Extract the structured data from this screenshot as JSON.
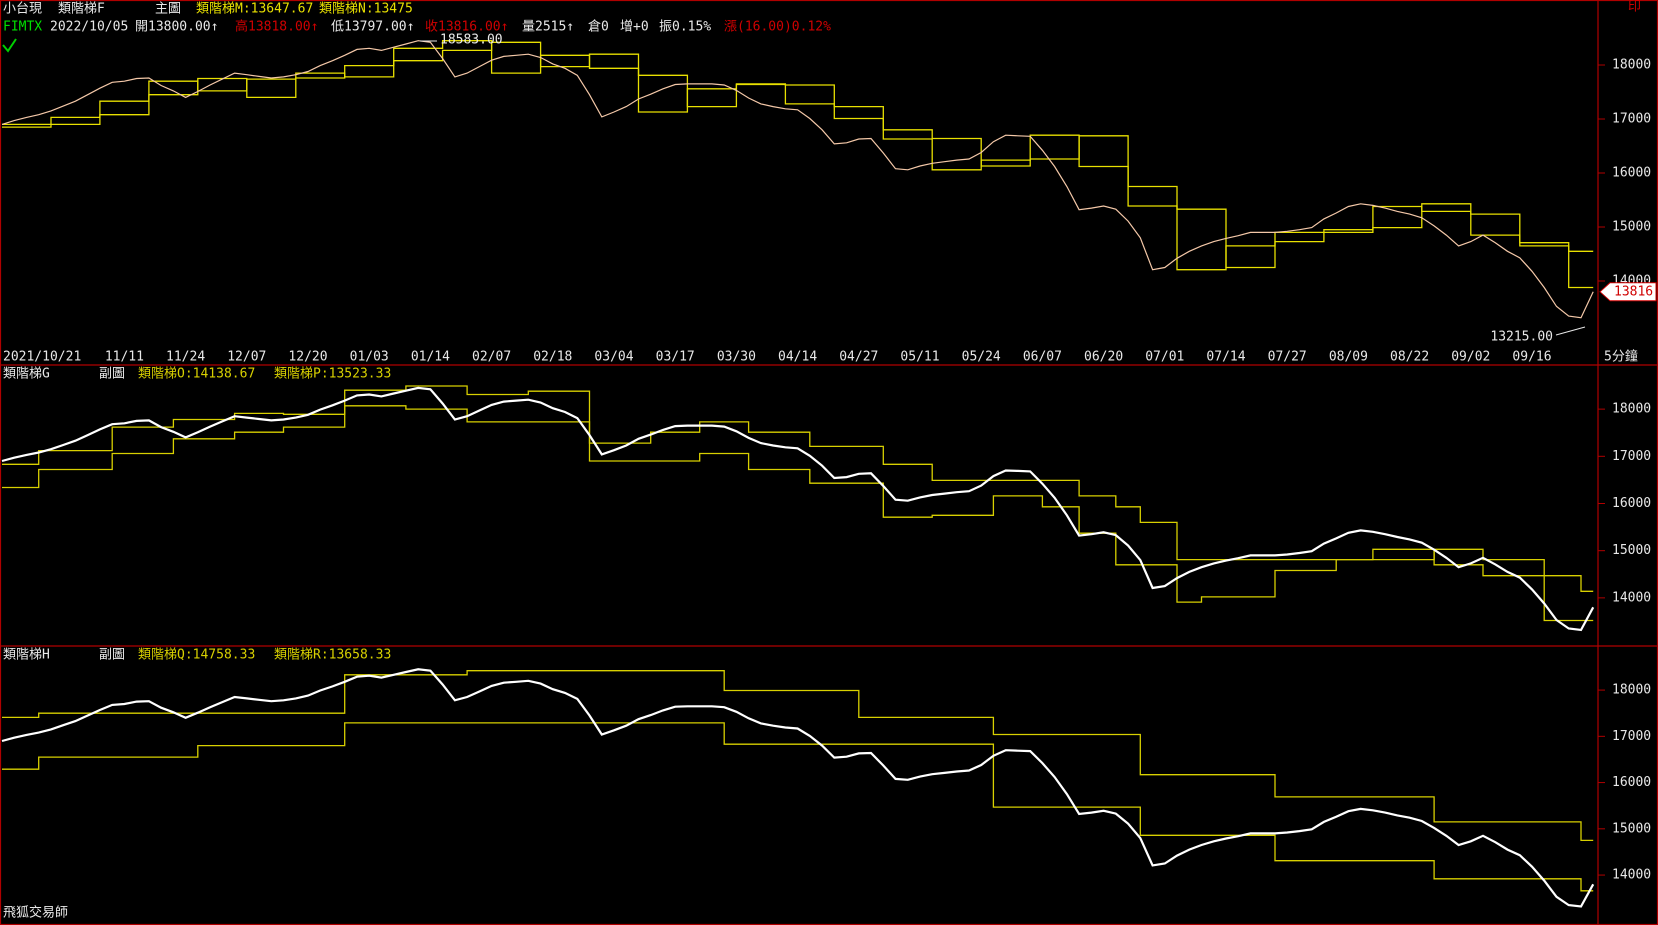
{
  "header": {
    "row1": [
      "小台現"
    ],
    "row2": [
      "FIMTX",
      "2022/10/05",
      "開13800.00↑",
      "高13818.00↑",
      "低13797.00↑",
      "收13816.00↑",
      "量2515↑",
      "倉0",
      "增+0",
      "振0.15%",
      "漲(16.00)0.12%"
    ],
    "row2_colors": [
      "#00e000",
      "#e8e8e8",
      "#e8e8e8",
      "#d00000",
      "#e8e8e8",
      "#d00000",
      "#e8e8e8",
      "#e8e8e8",
      "#e8e8e8",
      "#e8e8e8",
      "#d00000"
    ],
    "corner": "印",
    "period": "5分鐘",
    "footer": "飛狐交易師"
  },
  "chart_data": [
    {
      "type": "line",
      "title": "類階梯F",
      "subtitle": "主圖",
      "annotations": [
        "18583.00",
        "13215.00",
        "13816"
      ],
      "categories": [
        "2021/10/21",
        null,
        null,
        null,
        null,
        null,
        null,
        null,
        null,
        null,
        "11/11",
        null,
        null,
        null,
        null,
        "11/24",
        null,
        null,
        null,
        null,
        "12/07",
        null,
        null,
        null,
        null,
        "12/20",
        null,
        null,
        null,
        null,
        "01/03",
        null,
        null,
        null,
        null,
        "01/14",
        null,
        null,
        null,
        null,
        "02/07",
        null,
        null,
        null,
        null,
        "02/18",
        null,
        null,
        null,
        null,
        "03/04",
        null,
        null,
        null,
        null,
        "03/17",
        null,
        null,
        null,
        null,
        "03/30",
        null,
        null,
        null,
        null,
        "04/14",
        null,
        null,
        null,
        null,
        "04/27",
        null,
        null,
        null,
        null,
        "05/11",
        null,
        null,
        null,
        null,
        "05/24",
        null,
        null,
        null,
        null,
        "06/07",
        null,
        null,
        null,
        null,
        "06/20",
        null,
        null,
        null,
        null,
        "07/01",
        null,
        null,
        null,
        null,
        "07/14",
        null,
        null,
        null,
        null,
        "07/27",
        null,
        null,
        null,
        null,
        "08/09",
        null,
        null,
        null,
        null,
        "08/22",
        null,
        null,
        null,
        null,
        "09/02",
        null,
        null,
        null,
        null,
        "09/16",
        null,
        null,
        null,
        null,
        null
      ],
      "ylim": [
        12815,
        19204
      ],
      "yticks": [
        14000,
        15000,
        16000,
        17000,
        18000
      ],
      "series": [
        {
          "color": "#f4c8a8",
          "values": [
            16900,
            16970,
            17030,
            17080,
            17150,
            17240,
            17330,
            17450,
            17570,
            17680,
            17700,
            17750,
            17760,
            17620,
            17520,
            17400,
            17510,
            17630,
            17740,
            17850,
            17820,
            17790,
            17760,
            17780,
            17820,
            17880,
            17990,
            18080,
            18180,
            18290,
            18310,
            18270,
            18330,
            18390,
            18450,
            18420,
            18120,
            17780,
            17850,
            17970,
            18090,
            18160,
            18180,
            18200,
            18140,
            18020,
            17940,
            17810,
            17450,
            17040,
            17130,
            17230,
            17370,
            17460,
            17560,
            17640,
            17650,
            17650,
            17650,
            17630,
            17530,
            17390,
            17280,
            17230,
            17190,
            17170,
            17010,
            16800,
            16540,
            16560,
            16630,
            16640,
            16370,
            16080,
            16060,
            16130,
            16180,
            16210,
            16240,
            16260,
            16380,
            16580,
            16700,
            16690,
            16680,
            16420,
            16120,
            15750,
            15320,
            15350,
            15390,
            15330,
            15110,
            14800,
            14210,
            14250,
            14420,
            14550,
            14650,
            14730,
            14790,
            14840,
            14900,
            14900,
            14900,
            14920,
            14950,
            14990,
            15150,
            15260,
            15380,
            15430,
            15400,
            15350,
            15290,
            15240,
            15170,
            15020,
            14850,
            14650,
            14730,
            14850,
            14710,
            14550,
            14430,
            14180,
            13880,
            13530,
            13350,
            13320,
            13800
          ]
        },
        {
          "name": "類階梯M:13647.67",
          "color": "#e8e000",
          "x": [
            0,
            4,
            8,
            12,
            16,
            20,
            24,
            28,
            32,
            36,
            40,
            44,
            48,
            52,
            56,
            60,
            64,
            68,
            72,
            76,
            80,
            84,
            88,
            92,
            96,
            100,
            104,
            108,
            112,
            116,
            120,
            124,
            128
          ],
          "values": [
            16900,
            17030,
            17330,
            17700,
            17520,
            17740,
            17760,
            17990,
            18310,
            18450,
            17850,
            18180,
            17940,
            17130,
            17560,
            17650,
            17280,
            17010,
            16630,
            16060,
            16240,
            16700,
            16120,
            15390,
            14210,
            14650,
            14900,
            14950,
            15380,
            15290,
            14850,
            14710,
            13880
          ]
        },
        {
          "name": "類階梯N:13475",
          "color": "#e8e000",
          "x": [
            0,
            4,
            8,
            12,
            16,
            20,
            24,
            28,
            32,
            36,
            40,
            44,
            48,
            52,
            56,
            60,
            64,
            68,
            72,
            76,
            80,
            84,
            88,
            92,
            96,
            100,
            104,
            108,
            112,
            116,
            120,
            124,
            128
          ],
          "values": [
            16850,
            16900,
            17080,
            17450,
            17750,
            17400,
            17850,
            17780,
            18080,
            18270,
            18420,
            17970,
            18200,
            17810,
            17230,
            17640,
            17630,
            17230,
            16800,
            16640,
            16130,
            16260,
            16690,
            15750,
            15330,
            14250,
            14730,
            14900,
            14990,
            15430,
            15240,
            14650,
            14550
          ]
        }
      ]
    },
    {
      "type": "line",
      "title": "類階梯G",
      "subtitle": "副圖",
      "ylim": [
        12980,
        18935
      ],
      "yticks": [
        14000,
        15000,
        16000,
        17000,
        18000
      ],
      "series": [
        {
          "name": "類階梯O:14138.67",
          "color": "#d8d000",
          "x": [
            0,
            3,
            9,
            14,
            19,
            23,
            28,
            33,
            38,
            43,
            48,
            53,
            57,
            61,
            66,
            72,
            76,
            88,
            91,
            93,
            96,
            117,
            121,
            126,
            129
          ],
          "values": [
            16830,
            17120,
            17620,
            17780,
            17910,
            17890,
            18400,
            18490,
            18310,
            18380,
            17280,
            17510,
            17730,
            17510,
            17210,
            16830,
            16490,
            16160,
            15930,
            15600,
            14810,
            15030,
            14810,
            14470,
            14140
          ]
        },
        {
          "name": "類階梯P:13523.33",
          "color": "#d8d000",
          "x": [
            0,
            3,
            9,
            14,
            19,
            23,
            28,
            33,
            38,
            48,
            57,
            61,
            66,
            72,
            76,
            81,
            85,
            88,
            91,
            96,
            98,
            104,
            109,
            112,
            117,
            121,
            126
          ],
          "values": [
            16340,
            16720,
            17060,
            17370,
            17510,
            17620,
            18070,
            18000,
            17730,
            16900,
            17060,
            16720,
            16430,
            15710,
            15750,
            16160,
            15930,
            15370,
            14700,
            13910,
            14020,
            14580,
            14810,
            15030,
            14700,
            14470,
            13520
          ]
        }
      ]
    },
    {
      "type": "line",
      "title": "類階梯H",
      "subtitle": "副圖",
      "ylim": [
        12985,
        18910
      ],
      "yticks": [
        14000,
        15000,
        16000,
        17000,
        18000
      ],
      "series": [
        {
          "name": "類階梯Q:14758.33",
          "color": "#d8d000",
          "x": [
            0,
            3,
            28,
            38,
            59,
            70,
            81,
            93,
            104,
            117,
            129
          ],
          "values": [
            17410,
            17500,
            18330,
            18420,
            17990,
            17410,
            17040,
            16170,
            15690,
            15150,
            14750
          ]
        },
        {
          "name": "類階梯R:13658.33",
          "color": "#d8d000",
          "x": [
            0,
            3,
            16,
            28,
            59,
            81,
            93,
            104,
            117,
            129
          ],
          "values": [
            16290,
            16550,
            16800,
            17290,
            16830,
            15470,
            14860,
            14310,
            13920,
            13660
          ]
        }
      ]
    }
  ]
}
